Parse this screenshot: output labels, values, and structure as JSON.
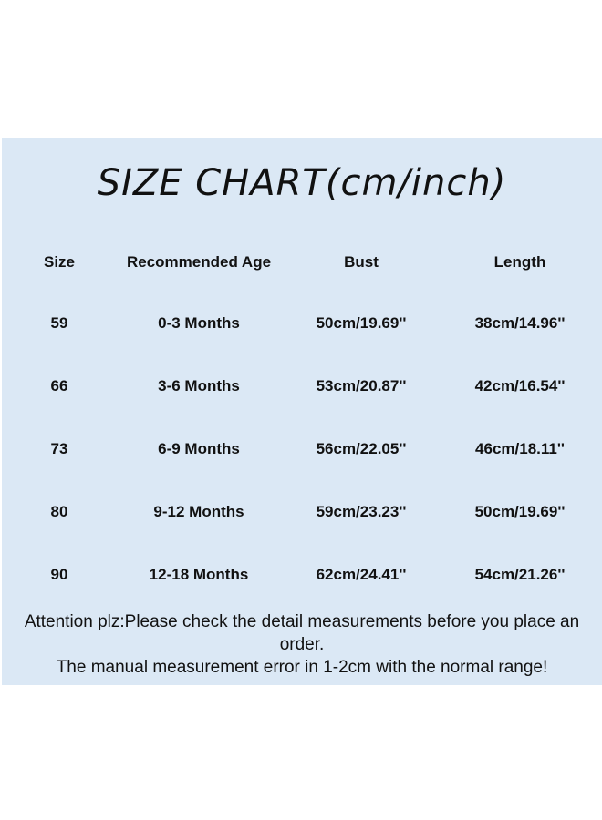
{
  "title": "SIZE CHART(cm/inch)",
  "background_color": "#dbe8f5",
  "table": {
    "headers": [
      "Size",
      "Recommended Age",
      "Bust",
      "Length"
    ],
    "rows": [
      [
        "59",
        "0-3 Months",
        "50cm/19.69''",
        "38cm/14.96''"
      ],
      [
        "66",
        "3-6 Months",
        "53cm/20.87''",
        "42cm/16.54''"
      ],
      [
        "73",
        "6-9 Months",
        "56cm/22.05''",
        "46cm/18.11''"
      ],
      [
        "80",
        "9-12 Months",
        "59cm/23.23''",
        "50cm/19.69''"
      ],
      [
        "90",
        "12-18 Months",
        "62cm/24.41''",
        "54cm/21.26''"
      ]
    ]
  },
  "footer": {
    "line1": "Attention plz:Please check the detail measurements before you place an order.",
    "line2": "The manual measurement error in 1-2cm with the normal range!"
  }
}
